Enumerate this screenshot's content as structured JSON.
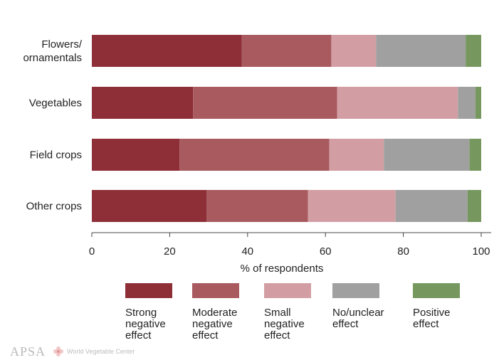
{
  "chart_data": {
    "type": "bar",
    "orientation": "horizontal",
    "stacked": true,
    "categories": [
      "Flowers/\nornamentals",
      "Vegetables",
      "Field crops",
      "Other crops"
    ],
    "series": [
      {
        "name": "Strong\nnegative\neffect",
        "color": "#8e2e37",
        "values": [
          38.5,
          26,
          22.5,
          29.5
        ]
      },
      {
        "name": "Moderate\nnegative\neffect",
        "color": "#a85a5f",
        "values": [
          23,
          37,
          38.5,
          26
        ]
      },
      {
        "name": "Small\nnegative\neffect",
        "color": "#d39ea3",
        "values": [
          11.5,
          31,
          14,
          22.5
        ]
      },
      {
        "name": "No/unclear\neffect",
        "color": "#a0a0a0",
        "values": [
          23,
          4.5,
          22,
          18.5
        ]
      },
      {
        "name": "Positive\neffect",
        "color": "#76985f",
        "values": [
          4,
          1.5,
          3,
          3.5
        ]
      }
    ],
    "xlabel": "% of respondents",
    "ylabel": "",
    "xlim": [
      0,
      100
    ],
    "xticks": [
      0,
      20,
      40,
      60,
      80,
      100
    ],
    "grid": false,
    "legend_position": "bottom"
  },
  "logos": {
    "left": "APSA",
    "right": "World Vegetable Center"
  }
}
